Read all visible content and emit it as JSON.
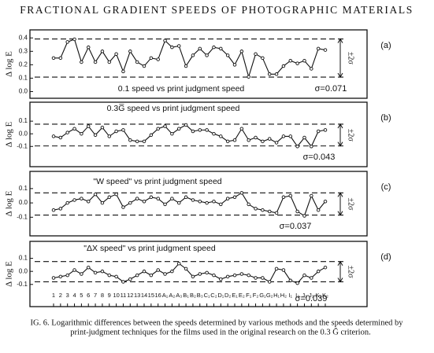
{
  "header": {
    "title": "FRACTIONAL GRADIENT SPEEDS OF PHOTOGRAPHIC MATERIALS"
  },
  "chart_data": [
    {
      "type": "line",
      "panel_label": "(a)",
      "title": "0.1 speed vs print judgment speed",
      "y_label": "Δ log E",
      "band_label": "±2σ",
      "sigma_label": "σ=0.071",
      "color": "#111111",
      "ylim": [
        -0.05,
        0.46
      ],
      "yticks": [
        {
          "value": 0,
          "label": "0.0"
        },
        0.1,
        0.2,
        0.3,
        0.4
      ],
      "limits": [
        0.108,
        0.392
      ],
      "values": [
        0.25,
        0.25,
        0.37,
        0.39,
        0.22,
        0.33,
        0.22,
        0.3,
        0.22,
        0.28,
        0.15,
        0.3,
        0.22,
        0.19,
        0.25,
        0.24,
        0.38,
        0.33,
        0.34,
        0.19,
        0.27,
        0.32,
        0.27,
        0.33,
        0.32,
        0.27,
        0.2,
        0.3,
        0.11,
        0.28,
        0.25,
        0.13,
        0.13,
        0.19,
        0.23,
        0.21,
        0.23,
        0.17,
        0.32,
        0.31
      ]
    },
    {
      "type": "line",
      "panel_label": "(b)",
      "title": "0.3G̅ speed vs print judgment speed",
      "y_label": "Δ log E",
      "band_label": "±2σ",
      "sigma_label": "σ=0.043",
      "color": "#111111",
      "ylim": [
        -0.26,
        0.25
      ],
      "yticks": [
        -0.1,
        {
          "value": 0,
          "label": "0.0"
        },
        0.1
      ],
      "limits": [
        -0.096,
        0.076
      ],
      "values": [
        -0.02,
        -0.03,
        0.01,
        0.04,
        0.0,
        0.06,
        -0.01,
        0.05,
        -0.02,
        0.02,
        0.03,
        -0.05,
        -0.06,
        -0.06,
        -0.01,
        0.04,
        0.06,
        0.0,
        0.04,
        0.07,
        0.02,
        0.03,
        0.03,
        0.0,
        -0.02,
        -0.06,
        -0.05,
        0.04,
        -0.05,
        -0.03,
        -0.06,
        -0.04,
        -0.07,
        -0.02,
        -0.02,
        -0.1,
        -0.03,
        -0.1,
        0.02,
        0.03
      ]
    },
    {
      "type": "line",
      "panel_label": "(c)",
      "title": "\"W speed\" vs print judgment speed",
      "y_label": "Δ log E",
      "band_label": "±2σ",
      "sigma_label": "σ=0.037",
      "color": "#111111",
      "ylim": [
        -0.23,
        0.22
      ],
      "yticks": [
        -0.1,
        {
          "value": 0,
          "label": "0.0"
        },
        0.1
      ],
      "limits": [
        -0.085,
        0.07
      ],
      "values": [
        -0.05,
        -0.04,
        0.0,
        0.02,
        0.03,
        0.01,
        0.06,
        0.0,
        0.04,
        0.06,
        -0.03,
        0.0,
        0.03,
        0.01,
        0.04,
        0.03,
        -0.01,
        0.03,
        0.0,
        0.04,
        0.02,
        0.01,
        0.0,
        0.01,
        -0.01,
        0.03,
        0.04,
        0.07,
        -0.01,
        -0.04,
        -0.05,
        -0.06,
        -0.07,
        0.04,
        0.05,
        -0.06,
        -0.09,
        0.05,
        -0.05,
        0.01
      ]
    },
    {
      "type": "line",
      "panel_label": "(d)",
      "title": "\"ΔX speed\" vs print judgment speed",
      "y_label": "Δ log E",
      "band_label": "±2σ",
      "sigma_label": "σ=0.039",
      "color": "#111111",
      "ylim": [
        -0.27,
        0.23
      ],
      "yticks": [
        -0.1,
        {
          "value": 0,
          "label": "0.0"
        },
        0.1
      ],
      "limits": [
        -0.08,
        0.075
      ],
      "categories": [
        "1",
        "2",
        "3",
        "4",
        "5",
        "6",
        "7",
        "8",
        "9",
        "10",
        "11",
        "12",
        "13",
        "14",
        "15",
        "16",
        "A₁",
        "A₂",
        "A₃",
        "B₁",
        "B₂",
        "B₃",
        "C₁",
        "C₂",
        "D₁",
        "D₂",
        "E₁",
        "E₂",
        "F₁",
        "F₂",
        "G₁",
        "G₂",
        "H₁",
        "H₂",
        "I₁",
        "I₂",
        "J₁",
        "J₂",
        "K₁",
        "K₂"
      ],
      "values": [
        -0.05,
        -0.04,
        -0.03,
        0.01,
        -0.02,
        0.03,
        -0.01,
        0.0,
        -0.03,
        -0.04,
        -0.08,
        -0.06,
        -0.03,
        0.0,
        -0.03,
        0.01,
        -0.02,
        0.0,
        0.06,
        0.02,
        -0.04,
        -0.02,
        -0.01,
        -0.03,
        -0.06,
        -0.04,
        -0.03,
        -0.02,
        -0.03,
        -0.05,
        -0.05,
        -0.08,
        0.02,
        0.01,
        -0.07,
        -0.09,
        -0.03,
        -0.05,
        0.0,
        0.03
      ]
    }
  ],
  "caption": {
    "lines": [
      "IG. 6. Logarithmic differences between the speeds determined by various methods and the speeds determined by",
      "print-judgment techniques for the films used in the original research on the 0.3 Ḡ criterion."
    ]
  }
}
